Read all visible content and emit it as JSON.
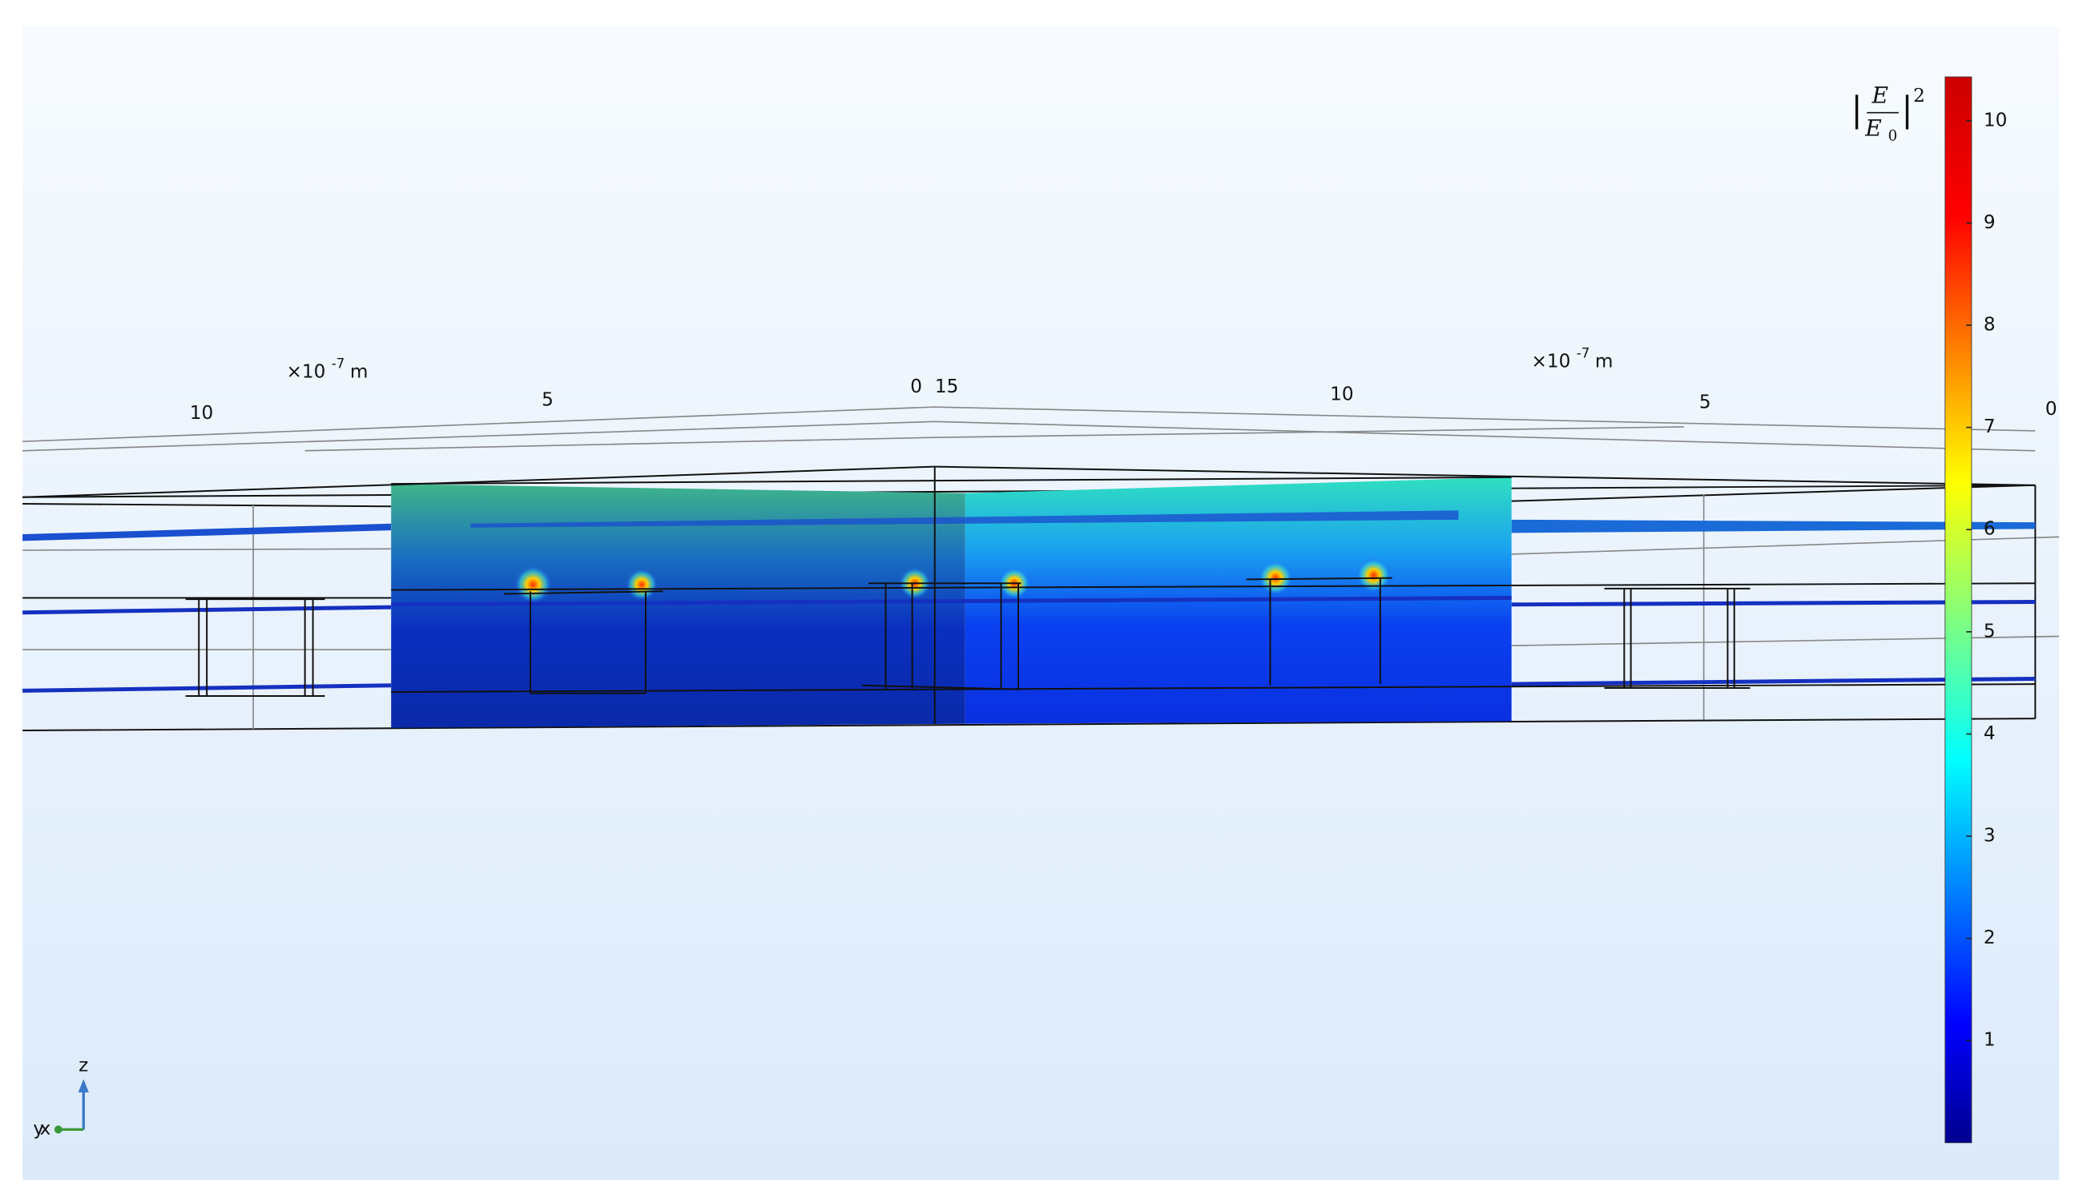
{
  "colorbar": {
    "title": {
      "numerator": "E",
      "denominator": "E",
      "denominator_subscript": "0",
      "exponent": "2"
    },
    "range": [
      0,
      10.43
    ],
    "ticks": [
      1,
      2,
      3,
      4,
      5,
      6,
      7,
      8,
      9,
      10
    ]
  },
  "axes": [
    {
      "scale": {
        "multiplier": "×10",
        "exponent": "-7",
        "unit": "m"
      },
      "tick_labels": [
        10,
        5,
        0
      ]
    },
    {
      "scale": {
        "multiplier": "×10",
        "exponent": "-7",
        "unit": "m"
      },
      "tick_labels": [
        15,
        10,
        5,
        0
      ]
    }
  ],
  "triad": {
    "z": "z",
    "y": "y",
    "x": "x"
  }
}
